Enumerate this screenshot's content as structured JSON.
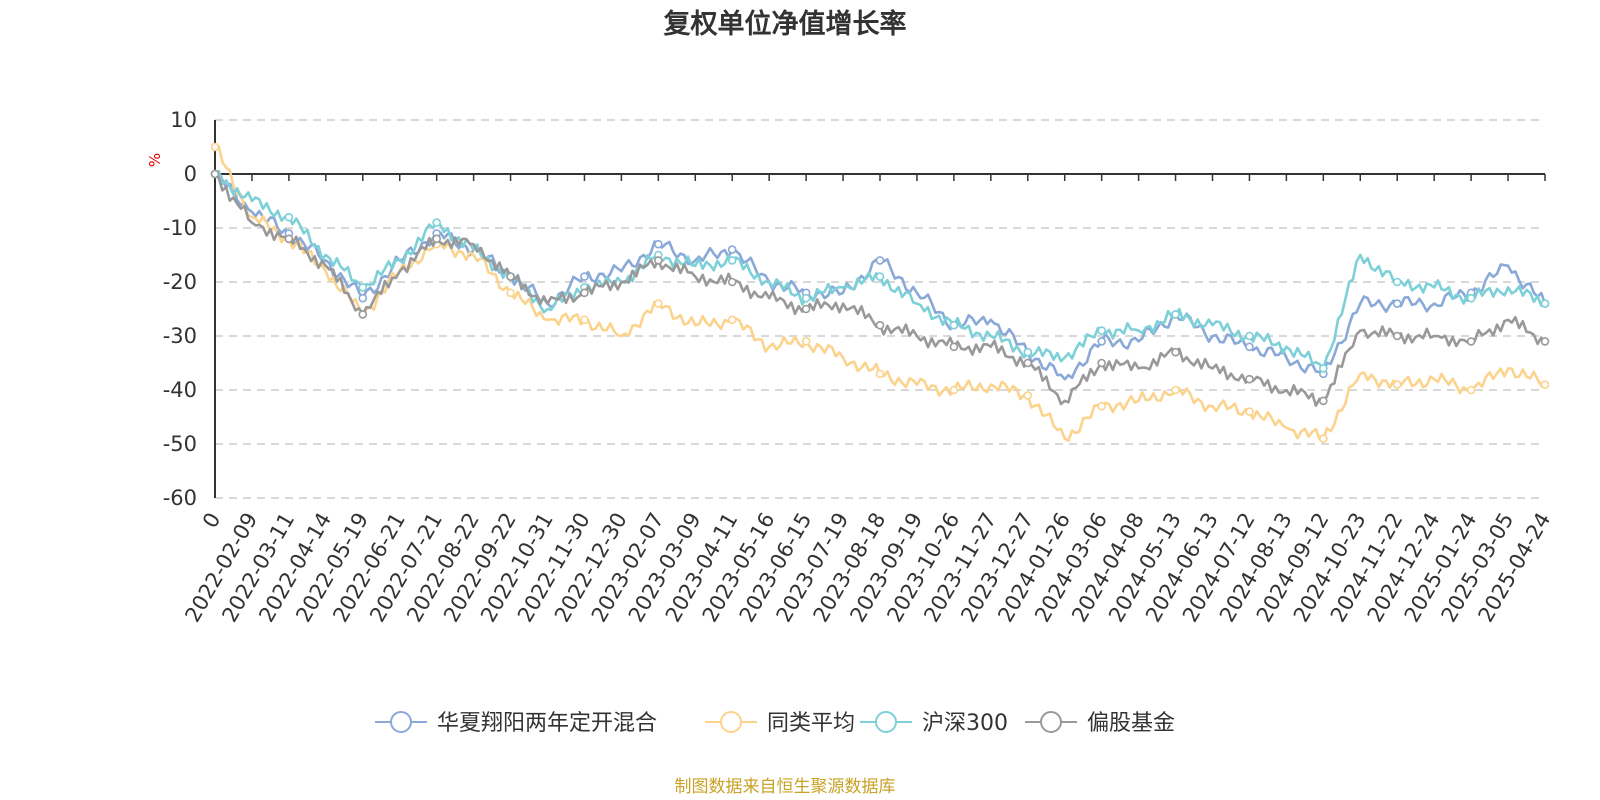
{
  "chart_data": {
    "type": "line",
    "title": "复权单位净值增长率",
    "ylabel": "%",
    "ylim": [
      -60,
      10
    ],
    "yticks": [
      "10",
      "0",
      "-10",
      "-20",
      "-30",
      "-40",
      "-50",
      "-60"
    ],
    "ytick_values": [
      10,
      0,
      -10,
      -20,
      -30,
      -40,
      -50,
      -60
    ],
    "categories": [
      "0",
      "2022-02-09",
      "2022-03-11",
      "2022-04-14",
      "2022-05-19",
      "2022-06-21",
      "2022-07-21",
      "2022-08-22",
      "2022-09-22",
      "2022-10-31",
      "2022-11-30",
      "2022-12-30",
      "2023-02-07",
      "2023-03-09",
      "2023-04-11",
      "2023-05-16",
      "2023-06-15",
      "2023-07-19",
      "2023-08-18",
      "2023-09-19",
      "2023-10-26",
      "2023-11-27",
      "2023-12-27",
      "2024-01-26",
      "2024-03-06",
      "2024-04-08",
      "2024-05-13",
      "2024-06-13",
      "2024-07-12",
      "2024-08-13",
      "2024-09-12",
      "2024-10-23",
      "2024-11-22",
      "2024-12-24",
      "2025-01-24",
      "2025-03-05",
      "2025-04-24"
    ],
    "legend_position": "bottom",
    "source": "制图数据来自恒生聚源数据库",
    "series": [
      {
        "name": "华夏翔阳两年定开混合",
        "color": "#8aa8d8",
        "values": [
          0,
          -7,
          -11,
          -16,
          -23,
          -16,
          -11,
          -14,
          -19,
          -24,
          -19,
          -18,
          -13,
          -16,
          -14,
          -20,
          -22,
          -22,
          -16,
          -22,
          -28,
          -27,
          -33,
          -38,
          -31,
          -31,
          -26,
          -30,
          -32,
          -34,
          -37,
          -24,
          -24,
          -24,
          -22,
          -17,
          -24
        ]
      },
      {
        "name": "同类平均",
        "color": "#fbd38d",
        "values": [
          5,
          -8,
          -12,
          -18,
          -26,
          -18,
          -13,
          -15,
          -22,
          -27,
          -27,
          -30,
          -24,
          -28,
          -27,
          -32,
          -31,
          -34,
          -37,
          -39,
          -40,
          -39,
          -41,
          -49,
          -43,
          -42,
          -40,
          -43,
          -44,
          -47,
          -49,
          -37,
          -39,
          -38,
          -40,
          -36,
          -39
        ]
      },
      {
        "name": "沪深300",
        "color": "#7ed0d8",
        "values": [
          0,
          -5,
          -8,
          -15,
          -21,
          -16,
          -9,
          -14,
          -19,
          -25,
          -21,
          -20,
          -15,
          -17,
          -16,
          -20,
          -23,
          -21,
          -19,
          -24,
          -28,
          -30,
          -33,
          -34,
          -29,
          -29,
          -26,
          -28,
          -30,
          -32,
          -36,
          -15,
          -20,
          -21,
          -23,
          -21,
          -24
        ]
      },
      {
        "name": "偏股基金",
        "color": "#999999",
        "values": [
          0,
          -9,
          -12,
          -17,
          -26,
          -18,
          -12,
          -13,
          -19,
          -24,
          -22,
          -20,
          -16,
          -19,
          -20,
          -23,
          -25,
          -24,
          -28,
          -30,
          -32,
          -32,
          -35,
          -42,
          -35,
          -36,
          -33,
          -36,
          -38,
          -40,
          -42,
          -29,
          -30,
          -30,
          -31,
          -27,
          -31
        ]
      }
    ]
  }
}
